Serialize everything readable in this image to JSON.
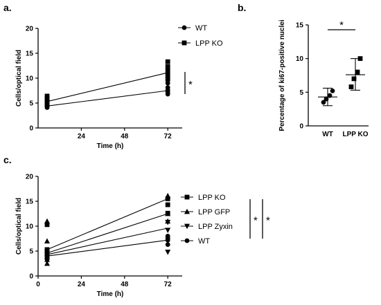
{
  "chart_data": [
    {
      "panel_label": "a.",
      "type": "scatter",
      "ylabel": "Cells/optical field",
      "xlabel": "Time  (h)",
      "xlim": [
        0,
        80
      ],
      "ylim": [
        0,
        20
      ],
      "xticks": [
        24,
        48,
        72
      ],
      "yticks": [
        0,
        5,
        10,
        15,
        20
      ],
      "legend_position": "top-right",
      "significance": "*",
      "series": [
        {
          "name": "WT",
          "marker": "circle",
          "means": [
            [
              5,
              4.4
            ],
            [
              72,
              7.5
            ]
          ],
          "points": [
            [
              5,
              4.1
            ],
            [
              5,
              4.4
            ],
            [
              5,
              4.7
            ],
            [
              5,
              5.0
            ],
            [
              5,
              5.3
            ],
            [
              72,
              6.8
            ],
            [
              72,
              7.2
            ],
            [
              72,
              7.6
            ],
            [
              72,
              8.1
            ],
            [
              72,
              9.0
            ]
          ]
        },
        {
          "name": "LPP KO",
          "marker": "square",
          "means": [
            [
              5,
              5.3
            ],
            [
              72,
              11.1
            ]
          ],
          "points": [
            [
              5,
              4.6
            ],
            [
              5,
              5.2
            ],
            [
              5,
              5.6
            ],
            [
              5,
              6.0
            ],
            [
              5,
              6.4
            ],
            [
              72,
              9.8
            ],
            [
              72,
              10.6
            ],
            [
              72,
              11.5
            ],
            [
              72,
              12.3
            ],
            [
              72,
              13.3
            ]
          ]
        }
      ]
    },
    {
      "panel_label": "b.",
      "type": "scatter",
      "ylabel": "Percentage of ki67-positive nuclei",
      "categories": [
        "WT",
        "LPP KO"
      ],
      "ylim": [
        0,
        15
      ],
      "yticks": [
        0,
        5,
        10,
        15
      ],
      "significance": "*",
      "series": [
        {
          "name": "WT",
          "marker": "circle",
          "values": [
            3.5,
            4.0,
            4.5,
            5.2
          ],
          "mean": 4.3,
          "error": [
            3.0,
            5.6
          ]
        },
        {
          "name": "LPP KO",
          "marker": "square",
          "values": [
            5.8,
            7.0,
            8.0,
            10.0
          ],
          "mean": 7.6,
          "error": [
            5.3,
            10.0
          ]
        }
      ]
    },
    {
      "panel_label": "c.",
      "type": "scatter",
      "ylabel": "Cells/optical field",
      "xlabel": "Time  (h)",
      "xlim": [
        0,
        80
      ],
      "ylim": [
        0,
        20
      ],
      "xticks": [
        0,
        24,
        48,
        72
      ],
      "yticks": [
        0,
        5,
        10,
        15,
        20
      ],
      "legend_position": "right",
      "significance": [
        "*",
        "*"
      ],
      "series": [
        {
          "name": "LPP KO",
          "marker": "square",
          "means": [
            [
              5,
              5.3
            ],
            [
              72,
              15.5
            ]
          ],
          "points": [
            [
              5,
              3.9
            ],
            [
              5,
              4.5
            ],
            [
              5,
              5.3
            ],
            [
              5,
              10.3
            ],
            [
              72,
              12.6
            ],
            [
              72,
              14.3
            ],
            [
              72,
              15.5
            ]
          ]
        },
        {
          "name": "LPP GFP",
          "marker": "triangle-up",
          "means": [
            [
              5,
              4.6
            ],
            [
              72,
              12.5
            ]
          ],
          "points": [
            [
              5,
              2.5
            ],
            [
              5,
              3.3
            ],
            [
              5,
              7.0
            ],
            [
              5,
              11.0
            ],
            [
              72,
              11.0
            ],
            [
              72,
              12.5
            ],
            [
              72,
              16.1
            ]
          ]
        },
        {
          "name": "LPP Zyxin",
          "marker": "triangle-down",
          "means": [
            [
              5,
              4.3
            ],
            [
              72,
              9.6
            ]
          ],
          "points": [
            [
              5,
              3.0
            ],
            [
              5,
              3.6
            ],
            [
              5,
              4.3
            ],
            [
              5,
              4.8
            ],
            [
              72,
              4.8
            ],
            [
              72,
              9.2
            ],
            [
              72,
              10.8
            ]
          ]
        },
        {
          "name": "WT",
          "marker": "circle",
          "means": [
            [
              5,
              4.0
            ],
            [
              72,
              7.2
            ]
          ],
          "points": [
            [
              5,
              3.5
            ],
            [
              5,
              4.0
            ],
            [
              5,
              4.3
            ],
            [
              5,
              4.7
            ],
            [
              72,
              6.3
            ],
            [
              72,
              7.2
            ],
            [
              72,
              7.6
            ],
            [
              72,
              8.0
            ]
          ]
        }
      ]
    }
  ]
}
